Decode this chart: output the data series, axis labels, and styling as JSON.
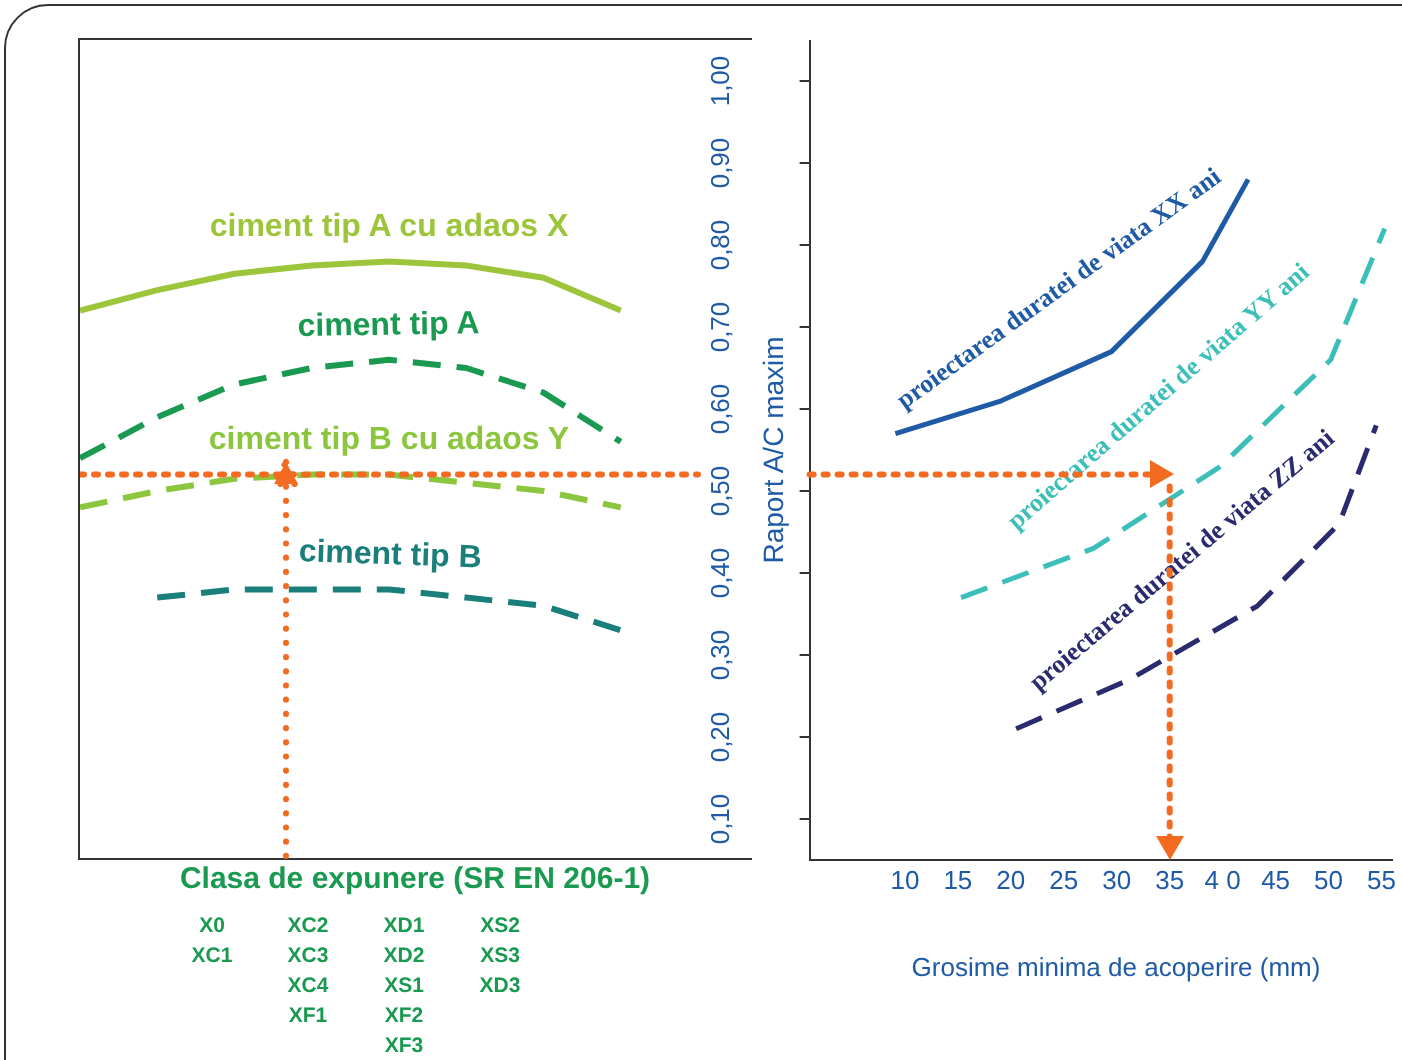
{
  "chart_data": [
    {
      "type": "line",
      "xlabel": "Clasa de expunere (SR EN 206-1)",
      "categories": [
        null,
        null,
        null,
        null,
        null,
        null,
        null,
        null,
        null
      ],
      "ylim": [
        0.05,
        1.05
      ],
      "yticks": [
        {
          "value": 0.1,
          "label": "0,10"
        },
        {
          "value": 0.2,
          "label": "0,20"
        },
        {
          "value": 0.3,
          "label": "0,30"
        },
        {
          "value": 0.4,
          "label": "0,40"
        },
        {
          "value": 0.5,
          "label": "0,50"
        },
        {
          "value": 0.6,
          "label": "0,60"
        },
        {
          "value": 0.7,
          "label": "0,70"
        },
        {
          "value": 0.8,
          "label": "0,80"
        },
        {
          "value": 0.9,
          "label": "0,90"
        },
        {
          "value": 1.0,
          "label": "1,00"
        }
      ],
      "tick_labels": "y",
      "ref_lines": [
        {
          "axis": "y",
          "value": 0.52,
          "color": "#f26b21",
          "line_style": "dotted"
        }
      ],
      "grid": false,
      "legend": false,
      "marker": "none",
      "annotations": [
        "X0\nXC1",
        "XC2\nXC3\nXC4\nXF1",
        "XD1\nXD2\nXS1\nXF2\nXF3",
        "XS2\nXS3\nXD3"
      ],
      "series": [
        {
          "name": "ciment tip A cu adaos X",
          "color": "#9dc53c",
          "line_style": "solid",
          "values": [
            0.72,
            0.745,
            0.765,
            0.775,
            0.78,
            0.775,
            0.76,
            0.72,
            null
          ]
        },
        {
          "name": "ciment tip A",
          "color": "#1a9a50",
          "line_style": "dashed",
          "values": [
            0.54,
            0.59,
            0.63,
            0.65,
            0.66,
            0.65,
            0.62,
            0.56,
            null
          ]
        },
        {
          "name": "ciment tip B cu adaos Y",
          "color": "#8cc63f",
          "line_style": "dashed",
          "values": [
            0.48,
            0.5,
            0.515,
            0.52,
            0.52,
            0.51,
            0.5,
            0.48,
            null
          ]
        },
        {
          "name": "ciment tip B",
          "color": "#1a7f7a",
          "line_style": "dashed",
          "values": [
            null,
            0.37,
            0.38,
            0.38,
            0.38,
            0.37,
            0.36,
            0.33,
            null
          ]
        }
      ]
    },
    {
      "type": "line",
      "xlabel": "Grosime minima de acoperire  (mm)",
      "ylabel": "Raport A/C maxim",
      "xlim": [
        1,
        56
      ],
      "xticks": [
        10,
        15,
        20,
        25,
        30,
        35,
        {
          "value": 40,
          "label": "4 0"
        },
        45,
        50,
        55
      ],
      "ylim": [
        0.05,
        1.05
      ],
      "yticks": [
        {
          "value": 0.1,
          "label": null
        },
        {
          "value": 0.2,
          "label": null
        },
        {
          "value": 0.3,
          "label": null
        },
        {
          "value": 0.4,
          "label": null
        },
        {
          "value": 0.5,
          "label": null
        },
        {
          "value": 0.6,
          "label": null
        },
        {
          "value": 0.7,
          "label": null
        },
        {
          "value": 0.8,
          "label": null
        },
        {
          "value": 0.9,
          "label": null
        },
        {
          "value": 1.0,
          "label": null
        }
      ],
      "tick_labels": "x",
      "ref_lines": [
        {
          "axis": "y",
          "value": 0.52,
          "color": "#f26b21",
          "line_style": "dotted"
        },
        {
          "axis": "x",
          "value": 35,
          "color": "#f26b21",
          "line_style": "dotted"
        }
      ],
      "grid": false,
      "legend": false,
      "marker": "none",
      "series": [
        {
          "name": "proiectarea duratei de viata XX ani",
          "color": "#1f5aa6",
          "line_style": "solid",
          "x": [
            9.1,
            19.1,
            29.5,
            38.1,
            42.4
          ],
          "values": [
            0.57,
            0.61,
            0.67,
            0.78,
            0.88
          ]
        },
        {
          "name": "proiectarea duratei de viata YY ani",
          "color": "#3bbfb8",
          "line_style": "dashed",
          "x": [
            15.3,
            27.8,
            39.8,
            50.2,
            55.3
          ],
          "values": [
            0.37,
            0.43,
            0.53,
            0.66,
            0.82
          ]
        },
        {
          "name": "proiectarea duratei de viata ZZ ani",
          "color": "#2a2a6e",
          "line_style": "dashed",
          "x": [
            20.5,
            31.2,
            43.3,
            51.0,
            54.5
          ],
          "values": [
            0.21,
            0.27,
            0.36,
            0.46,
            0.58
          ]
        }
      ]
    }
  ]
}
